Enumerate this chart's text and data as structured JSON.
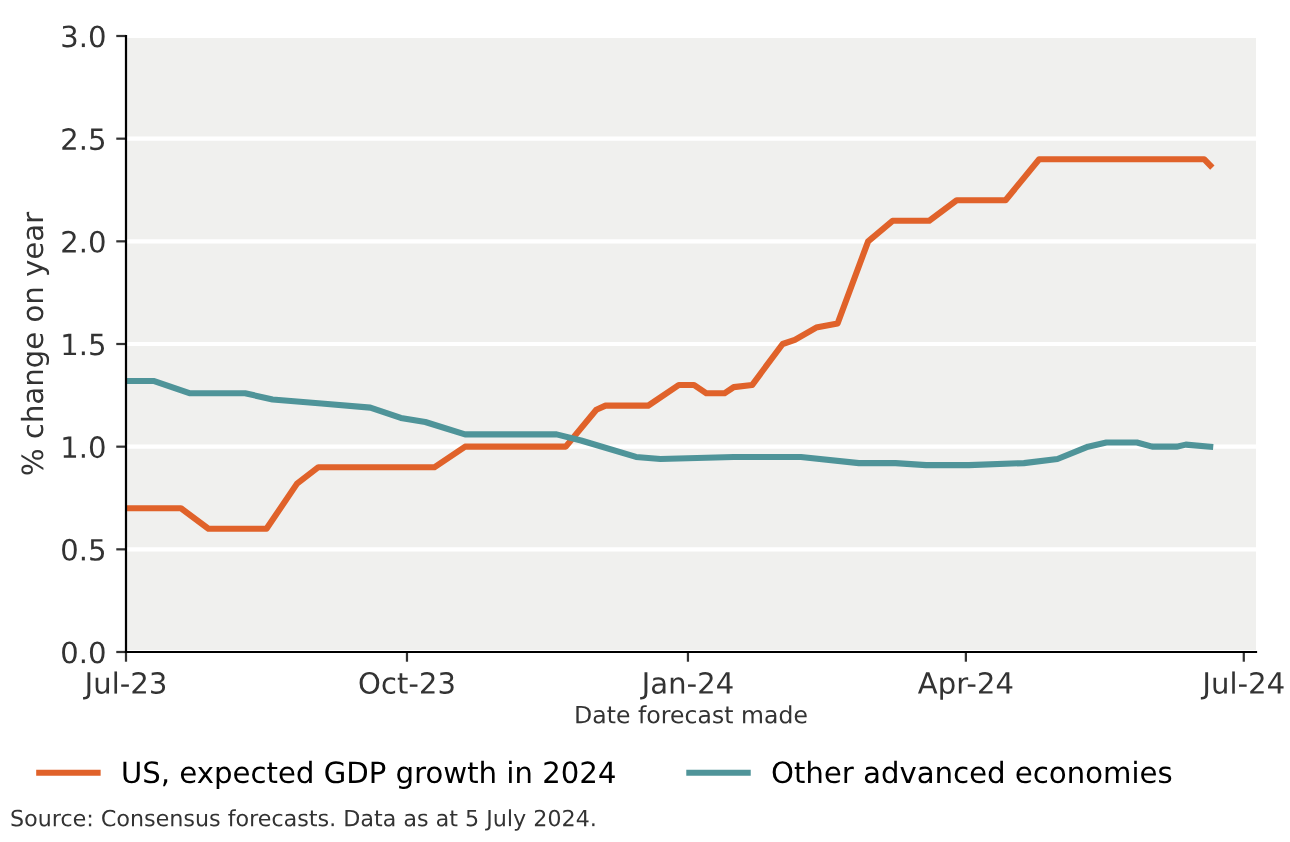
{
  "chart_data": {
    "type": "line",
    "xlabel": "Date forecast made",
    "ylabel": "% change on year",
    "xlim": [
      "2023-07-01",
      "2024-07-05"
    ],
    "xticks": [
      {
        "value": "2023-07-01",
        "label": "Jul-23"
      },
      {
        "value": "2023-10-01",
        "label": "Oct-23"
      },
      {
        "value": "2024-01-01",
        "label": "Jan-24"
      },
      {
        "value": "2024-04-01",
        "label": "Apr-24"
      },
      {
        "value": "2024-07-01",
        "label": "Jul-24"
      }
    ],
    "ylim": [
      0,
      3.0
    ],
    "yticks": [
      {
        "value": 0,
        "label": "0.0"
      },
      {
        "value": 0.5,
        "label": "0.5"
      },
      {
        "value": 1.0,
        "label": "1.0"
      },
      {
        "value": 1.5,
        "label": "1.5"
      },
      {
        "value": 2.0,
        "label": "2.0"
      },
      {
        "value": 2.5,
        "label": "2.5"
      },
      {
        "value": 3.0,
        "label": "3.0"
      }
    ],
    "grid": "y",
    "legend": "bottom",
    "marker": "none",
    "line_style": "solid",
    "series": [
      {
        "name": "US, expected GDP growth in 2024",
        "color": "#e0622a",
        "x": [
          "2023-07-01",
          "2023-07-19",
          "2023-07-28",
          "2023-08-16",
          "2023-08-26",
          "2023-09-02",
          "2023-10-10",
          "2023-10-20",
          "2023-11-22",
          "2023-12-02",
          "2023-12-05",
          "2023-12-19",
          "2023-12-29",
          "2024-01-03",
          "2024-01-07",
          "2024-01-13",
          "2024-01-16",
          "2024-01-22",
          "2024-02-01",
          "2024-02-05",
          "2024-02-12",
          "2024-02-19",
          "2024-02-29",
          "2024-03-08",
          "2024-03-20",
          "2024-03-29",
          "2024-04-14",
          "2024-04-25",
          "2024-06-18",
          "2024-06-20"
        ],
        "values": [
          0.7,
          0.7,
          0.6,
          0.6,
          0.82,
          0.9,
          0.9,
          1.0,
          1.0,
          1.18,
          1.2,
          1.2,
          1.3,
          1.3,
          1.26,
          1.26,
          1.29,
          1.3,
          1.5,
          1.52,
          1.58,
          1.6,
          2.0,
          2.1,
          2.1,
          2.2,
          2.2,
          2.4,
          2.4,
          2.37
        ]
      },
      {
        "name": "Other advanced economies",
        "color": "#4f9499",
        "x": [
          "2023-07-01",
          "2023-07-10",
          "2023-07-22",
          "2023-08-09",
          "2023-08-18",
          "2023-08-26",
          "2023-09-03",
          "2023-09-19",
          "2023-09-29",
          "2023-10-07",
          "2023-10-20",
          "2023-11-19",
          "2023-11-27",
          "2023-12-15",
          "2023-12-23",
          "2024-01-16",
          "2024-02-07",
          "2024-02-26",
          "2024-03-09",
          "2024-03-19",
          "2024-04-02",
          "2024-04-20",
          "2024-05-01",
          "2024-05-11",
          "2024-05-17",
          "2024-05-27",
          "2024-06-01",
          "2024-06-09",
          "2024-06-12",
          "2024-06-20"
        ],
        "values": [
          1.32,
          1.32,
          1.26,
          1.26,
          1.23,
          1.22,
          1.21,
          1.19,
          1.14,
          1.12,
          1.06,
          1.06,
          1.03,
          0.95,
          0.94,
          0.95,
          0.95,
          0.92,
          0.92,
          0.91,
          0.91,
          0.92,
          0.94,
          1.0,
          1.02,
          1.02,
          1.0,
          1.0,
          1.01,
          1.0
        ]
      }
    ],
    "annotations": [
      "Source: Consensus forecasts. Data as at 5 July 2024."
    ]
  }
}
